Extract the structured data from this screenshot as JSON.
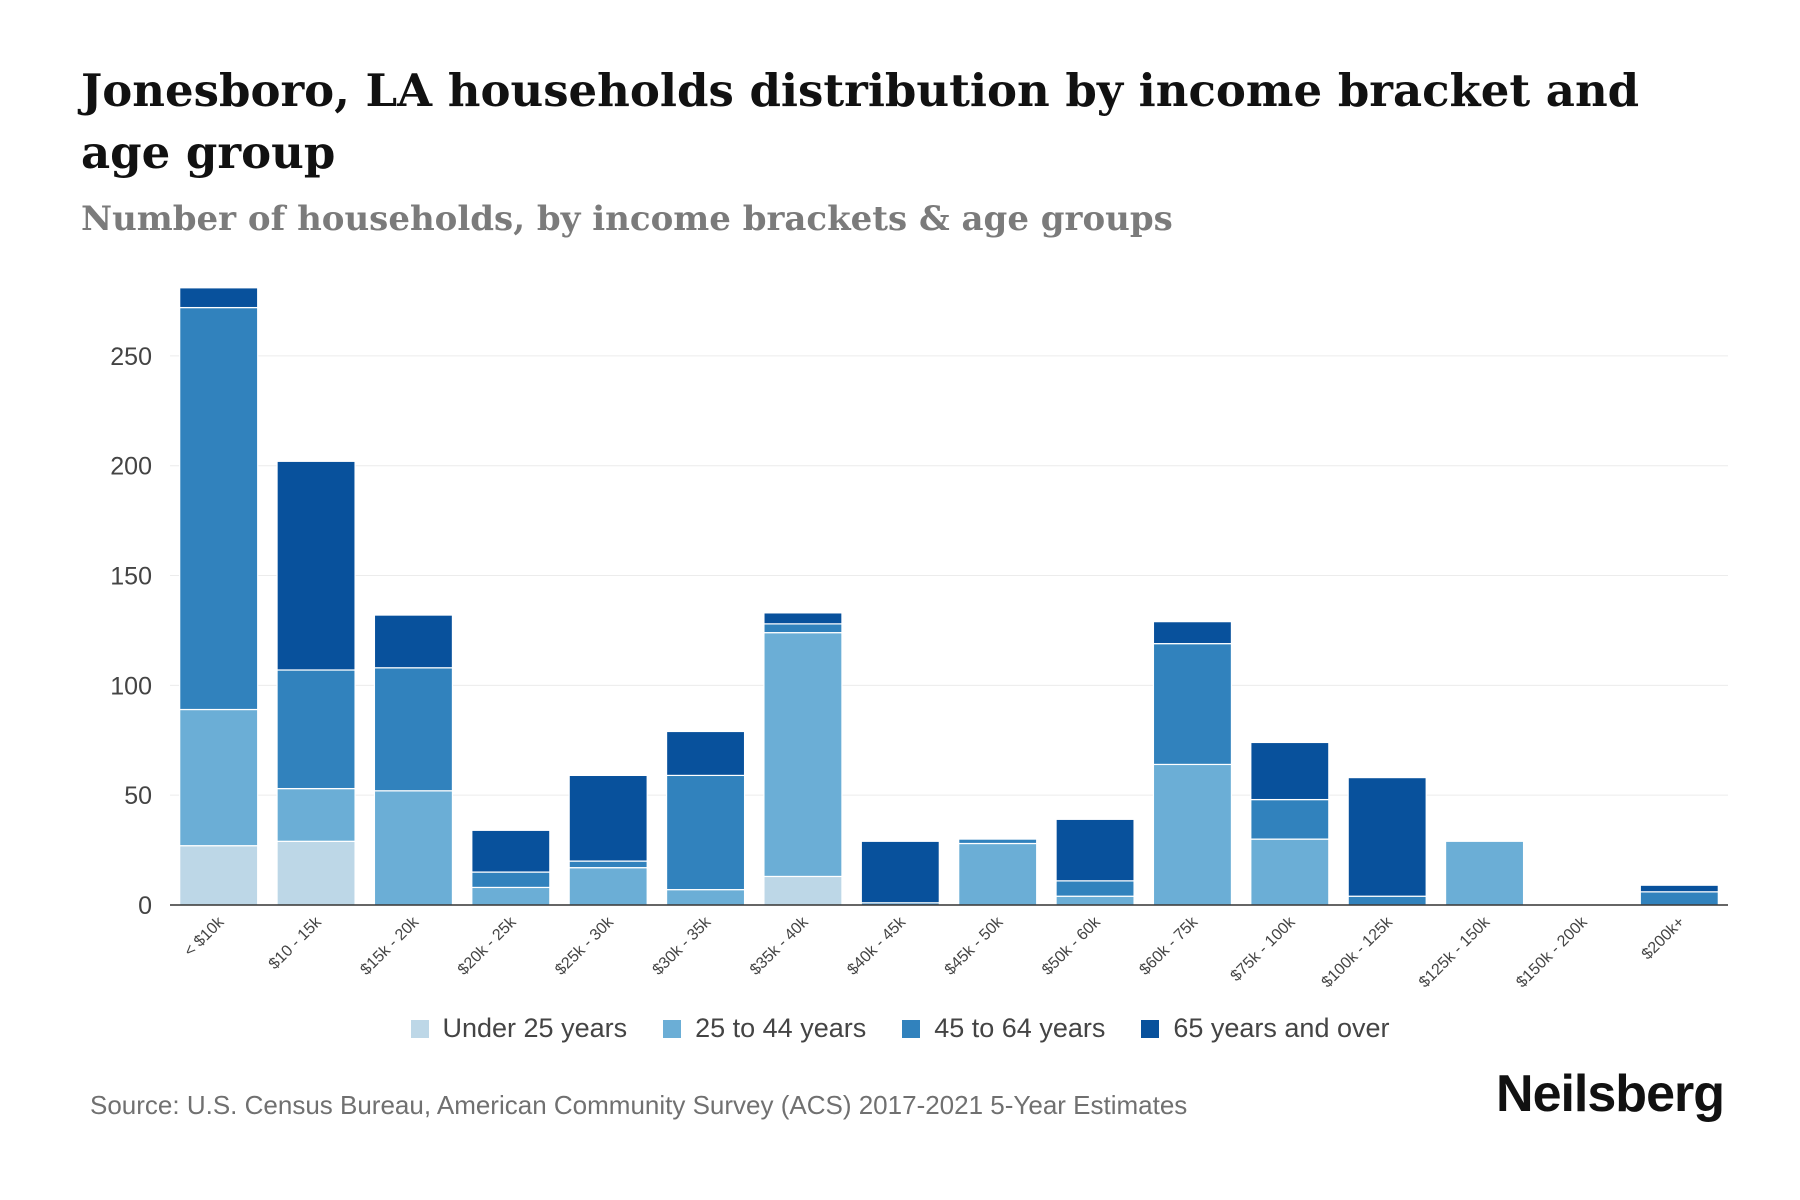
{
  "header": {
    "title": "Jonesboro, LA households distribution by income bracket and age group",
    "subtitle": "Number of households, by income brackets & age groups"
  },
  "footer": {
    "source": "Source: U.S. Census Bureau, American Community Survey (ACS) 2017-2021 5-Year Estimates",
    "brand": "Neilsberg"
  },
  "chart_data": {
    "type": "bar",
    "stacked": true,
    "title": "Jonesboro, LA households distribution by income bracket and age group",
    "subtitle": "Number of households, by income brackets & age groups",
    "xlabel": "",
    "ylabel": "",
    "ylim": [
      0,
      280
    ],
    "yticks": [
      0,
      50,
      100,
      150,
      200,
      250
    ],
    "grid": true,
    "legend_position": "bottom",
    "categories": [
      "< $10k",
      "$10 - 15k",
      "$15k - 20k",
      "$20k - 25k",
      "$25k - 30k",
      "$30k - 35k",
      "$35k - 40k",
      "$40k - 45k",
      "$45k - 50k",
      "$50k - 60k",
      "$60k - 75k",
      "$75k - 100k",
      "$100k - 125k",
      "$125k - 150k",
      "$150k - 200k",
      "$200k+"
    ],
    "series": [
      {
        "name": "Under 25 years",
        "color": "#bdd7e7",
        "values": [
          27,
          29,
          0,
          0,
          0,
          0,
          13,
          0,
          0,
          0,
          0,
          0,
          0,
          0,
          0,
          0
        ]
      },
      {
        "name": "25 to 44 years",
        "color": "#6baed6",
        "values": [
          62,
          24,
          52,
          8,
          17,
          7,
          111,
          0,
          28,
          4,
          64,
          30,
          0,
          29,
          0,
          0
        ]
      },
      {
        "name": "45 to 64 years",
        "color": "#3182bd",
        "values": [
          183,
          54,
          56,
          7,
          3,
          52,
          4,
          1,
          2,
          7,
          55,
          18,
          4,
          0,
          0,
          6
        ]
      },
      {
        "name": "65 years and over",
        "color": "#08519c",
        "values": [
          9,
          95,
          24,
          19,
          39,
          20,
          5,
          28,
          0,
          28,
          10,
          26,
          54,
          0,
          0,
          3
        ]
      }
    ]
  }
}
